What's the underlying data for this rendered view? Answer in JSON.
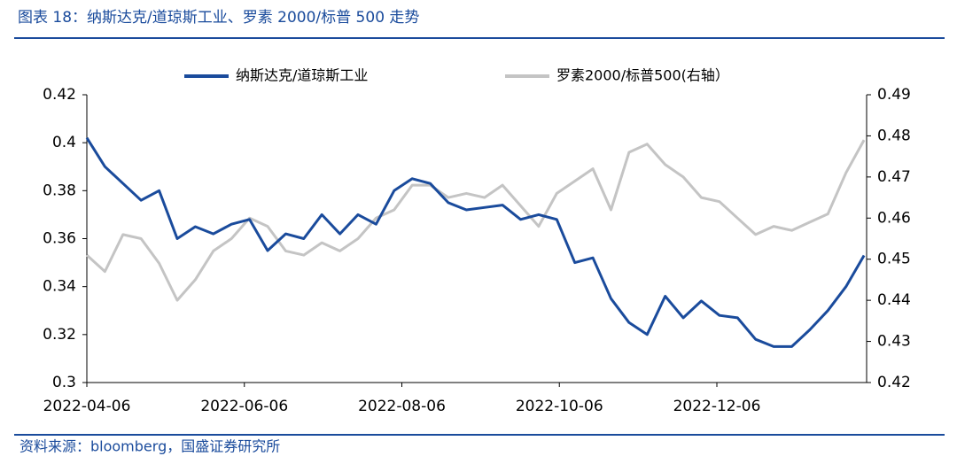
{
  "header": {
    "title": "图表 18：纳斯达克/道琼斯工业、罗素 2000/标普 500 走势"
  },
  "chart_data": {
    "type": "line",
    "x": [
      "2022-04-06",
      "2022-04-13",
      "2022-04-20",
      "2022-04-27",
      "2022-05-04",
      "2022-05-11",
      "2022-05-18",
      "2022-05-25",
      "2022-06-01",
      "2022-06-08",
      "2022-06-15",
      "2022-06-22",
      "2022-06-29",
      "2022-07-06",
      "2022-07-13",
      "2022-07-20",
      "2022-07-27",
      "2022-08-03",
      "2022-08-10",
      "2022-08-17",
      "2022-08-24",
      "2022-08-31",
      "2022-09-07",
      "2022-09-14",
      "2022-09-21",
      "2022-09-28",
      "2022-10-05",
      "2022-10-12",
      "2022-10-19",
      "2022-10-26",
      "2022-11-02",
      "2022-11-09",
      "2022-11-16",
      "2022-11-23",
      "2022-11-30",
      "2022-12-07",
      "2022-12-14",
      "2022-12-21",
      "2022-12-28",
      "2023-01-04",
      "2023-01-11",
      "2023-01-18",
      "2023-01-25",
      "2023-02-01"
    ],
    "series": [
      {
        "name": "纳斯达克/道琼斯工业",
        "color": "#1a4b9c",
        "axis": "y",
        "values": [
          0.402,
          0.39,
          0.383,
          0.376,
          0.38,
          0.36,
          0.365,
          0.362,
          0.366,
          0.368,
          0.355,
          0.362,
          0.36,
          0.37,
          0.362,
          0.37,
          0.366,
          0.38,
          0.385,
          0.383,
          0.375,
          0.372,
          0.373,
          0.374,
          0.368,
          0.37,
          0.368,
          0.35,
          0.352,
          0.335,
          0.325,
          0.32,
          0.336,
          0.327,
          0.334,
          0.328,
          0.327,
          0.318,
          0.315,
          0.315,
          0.322,
          0.33,
          0.34,
          0.353
        ]
      },
      {
        "name": "罗素2000/标普500(右轴）",
        "color": "#c4c4c4",
        "axis": "y2",
        "values": [
          0.451,
          0.447,
          0.456,
          0.455,
          0.449,
          0.44,
          0.445,
          0.452,
          0.455,
          0.46,
          0.458,
          0.452,
          0.451,
          0.454,
          0.452,
          0.455,
          0.46,
          0.462,
          0.468,
          0.468,
          0.465,
          0.466,
          0.465,
          0.468,
          0.463,
          0.458,
          0.466,
          0.469,
          0.472,
          0.462,
          0.476,
          0.478,
          0.473,
          0.47,
          0.465,
          0.464,
          0.46,
          0.456,
          0.458,
          0.457,
          0.459,
          0.461,
          0.471,
          0.479
        ]
      }
    ],
    "xlim": [
      "2022-04-06",
      "2023-02-02"
    ],
    "xticks": [
      "2022-04-06",
      "2022-06-06",
      "2022-08-06",
      "2022-10-06",
      "2022-12-06"
    ],
    "ylim": [
      0.3,
      0.42
    ],
    "yticks": [
      {
        "value": 0.3,
        "label": "0.3"
      },
      0.32,
      0.34,
      0.36,
      0.38,
      {
        "value": 0.4,
        "label": "0.4"
      },
      0.42
    ],
    "y2lim": [
      0.42,
      0.49
    ],
    "y2ticks": [
      0.42,
      0.43,
      0.44,
      0.45,
      0.46,
      0.47,
      0.48,
      0.49
    ],
    "legend": "top"
  },
  "footer": {
    "source": "资料来源：bloomberg，国盛证券研究所"
  }
}
